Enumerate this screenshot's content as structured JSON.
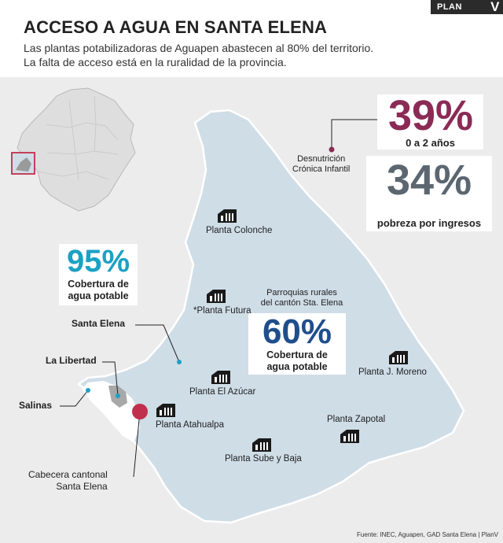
{
  "brand": {
    "name": "PLAN",
    "mark": "V"
  },
  "header": {
    "title": "ACCESO A AGUA EN SANTA ELENA",
    "subtitle_line1": "Las plantas potabilizadoras de Aguapen abastecen al 80% del territorio.",
    "subtitle_line2": "La falta de acceso está en la ruralidad de la provincia."
  },
  "stats": {
    "malnutrition": {
      "value": "39%",
      "caption": "0 a 2 años",
      "label_line1": "Desnutrición",
      "label_line2": "Crónica Infantil"
    },
    "poverty": {
      "value": "34%",
      "caption": "pobreza por ingresos"
    },
    "urban_coverage": {
      "value": "95%",
      "caption_line1": "Cobertura de",
      "caption_line2": "agua potable"
    },
    "rural_coverage": {
      "note_line1": "Parroquias rurales",
      "note_line2": "del cantón Sta. Elena",
      "value": "60%",
      "caption_line1": "Cobertura de",
      "caption_line2": "agua potable"
    }
  },
  "places": {
    "santa_elena": "Santa Elena",
    "la_libertad": "La Libertad",
    "salinas": "Salinas",
    "cabecera_line1": "Cabecera cantonal",
    "cabecera_line2": "Santa Elena"
  },
  "plants": [
    {
      "name": "Planta Colonche"
    },
    {
      "name": "*Planta Futura"
    },
    {
      "name": "Planta El Azúcar"
    },
    {
      "name": "Planta Atahualpa"
    },
    {
      "name": "Planta J. Moreno"
    },
    {
      "name": "Planta Zapotal"
    },
    {
      "name": "Planta Sube y Baja"
    }
  ],
  "source": "Fuente: INEC, Aguapen, GAD Santa Elena  |  PlanV",
  "colors": {
    "map_fill": "#cfdde7",
    "background": "#ececec",
    "maroon": "#8b2b55",
    "slate": "#5b6670",
    "teal": "#1ba1c4",
    "navy": "#1f4e8c",
    "red_dot": "#c0304d"
  }
}
